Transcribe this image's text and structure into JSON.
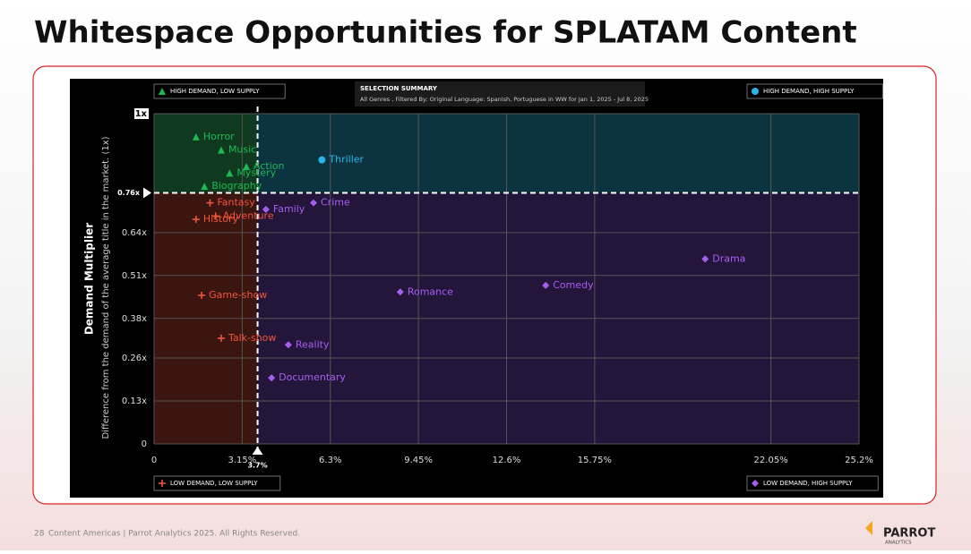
{
  "page": {
    "title": "Whitespace Opportunities for SPLATAM Content",
    "summary_title": "SELECTION SUMMARY",
    "summary_text": "All Genres , Filtered By: Original Language: Spanish, Portuguese in WW for Jan 1, 2025 - Jul 8, 2025",
    "footer_page": "28",
    "footer_text": "Content Americas | Parrot Analytics 2025. All Rights Reserved.",
    "logo": "PARROT",
    "logo_sub": "ANALYTICS"
  },
  "chart_data": {
    "type": "scatter",
    "y_label": "Demand Multiplier",
    "y_sublabel": "Difference from the demand of the average title in the market. (1x)",
    "xlim": [
      0,
      25.2
    ],
    "ylim": [
      0,
      1
    ],
    "xticks": [
      0,
      {
        "value": 3.15,
        "label": "3.15%"
      },
      {
        "value": 6.3,
        "label": "6.3%"
      },
      {
        "value": 9.45,
        "label": "9.45%"
      },
      {
        "value": 12.6,
        "label": "12.6%"
      },
      {
        "value": 15.75,
        "label": "15.75%"
      },
      {
        "value": 22.05,
        "label": "22.05%"
      },
      {
        "value": 25.2,
        "label": "25.2%"
      }
    ],
    "yticks": [
      0,
      {
        "value": 0.13,
        "label": "0.13x"
      },
      {
        "value": 0.26,
        "label": "0.26x"
      },
      {
        "value": 0.38,
        "label": "0.38x"
      },
      {
        "value": 0.51,
        "label": "0.51x"
      },
      {
        "value": 0.64,
        "label": "0.64x"
      },
      {
        "value": 1,
        "label": "1x"
      }
    ],
    "threshold_x": {
      "value": 3.7,
      "label": "3.7%"
    },
    "threshold_y": {
      "value": 0.76,
      "label": "0.76x"
    },
    "grid": true,
    "series": [
      {
        "name": "HIGH DEMAND, LOW SUPPLY",
        "color": "#1db954",
        "marker": "triangle",
        "labels": [
          "Horror",
          "Music",
          "Mystery",
          "Action",
          "Biography"
        ],
        "x": [
          1.5,
          2.4,
          2.7,
          3.3,
          1.8
        ],
        "y": [
          0.93,
          0.89,
          0.82,
          0.84,
          0.78
        ]
      },
      {
        "name": "HIGH DEMAND, HIGH SUPPLY",
        "color": "#2bb5e6",
        "marker": "circle",
        "labels": [
          "Thriller"
        ],
        "x": [
          6.0
        ],
        "y": [
          0.86
        ]
      },
      {
        "name": "LOW DEMAND, LOW SUPPLY",
        "color": "#f2553b",
        "marker": "plus",
        "labels": [
          "Fantasy",
          "History",
          "Adventure",
          "Game-show",
          "Talk-show"
        ],
        "x": [
          2.0,
          1.5,
          2.2,
          1.7,
          2.4
        ],
        "y": [
          0.73,
          0.68,
          0.69,
          0.45,
          0.32
        ]
      },
      {
        "name": "LOW DEMAND, HIGH SUPPLY",
        "color": "#a65ef0",
        "marker": "diamond",
        "labels": [
          "Family",
          "Crime",
          "Drama",
          "Romance",
          "Comedy",
          "Reality",
          "Documentary"
        ],
        "x": [
          4.0,
          5.7,
          19.7,
          8.8,
          14.0,
          4.8,
          4.2
        ],
        "y": [
          0.71,
          0.73,
          0.56,
          0.46,
          0.48,
          0.3,
          0.2
        ]
      }
    ]
  }
}
